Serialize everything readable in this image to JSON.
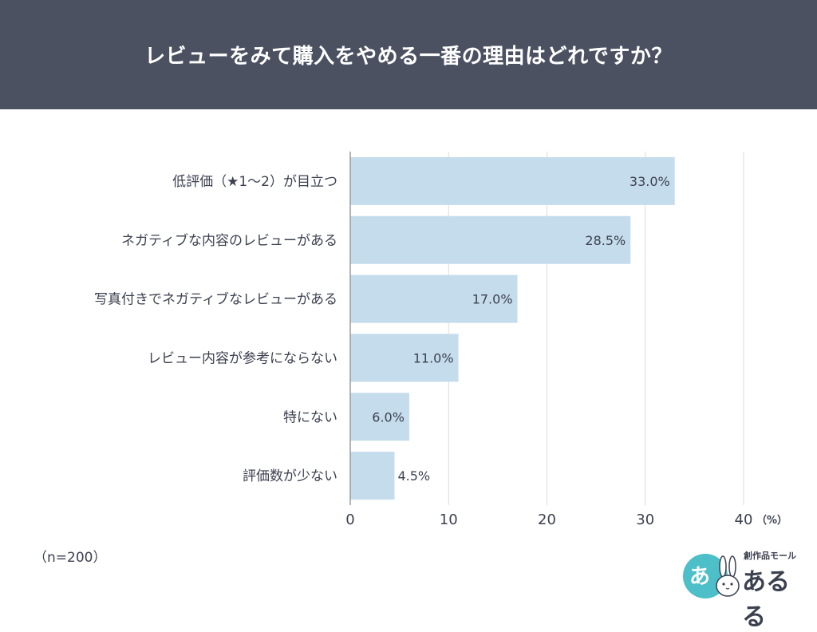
{
  "header": {
    "title": "レビューをみて購入をやめる一番の理由はどれですか？"
  },
  "chart_data": {
    "type": "bar",
    "orientation": "horizontal",
    "title": "レビューをみて購入をやめる一番の理由はどれですか？",
    "categories": [
      "低評価（★1～2）が目立つ",
      "ネガティブな内容のレビューがある",
      "写真付きでネガティブなレビューがある",
      "レビュー内容が参考にならない",
      "特にない",
      "評価数が少ない"
    ],
    "values": [
      33.0,
      28.5,
      17.0,
      11.0,
      6.0,
      4.5
    ],
    "value_labels": [
      "33.0%",
      "28.5%",
      "17.0%",
      "11.0%",
      "6.0%",
      "4.5%"
    ],
    "xlim": [
      0,
      40
    ],
    "x_ticks": [
      0,
      10,
      20,
      30,
      40
    ],
    "x_unit": "（%）",
    "grid": true,
    "bar_color": "#c5dcec"
  },
  "note": "（n=200）",
  "logo": {
    "circle_text": "あ",
    "sub_text": "創作品モール",
    "main_text": "あるる"
  }
}
